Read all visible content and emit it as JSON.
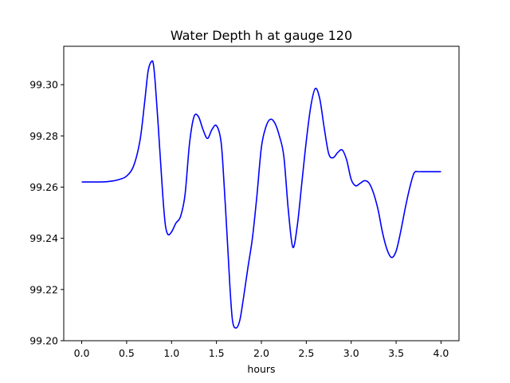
{
  "chart_data": {
    "type": "line",
    "title": "Water Depth h at gauge 120",
    "xlabel": "hours",
    "ylabel": "",
    "xlim": [
      -0.2,
      4.2
    ],
    "ylim": [
      99.2,
      99.315
    ],
    "xticks": [
      0.0,
      0.5,
      1.0,
      1.5,
      2.0,
      2.5,
      3.0,
      3.5,
      4.0
    ],
    "xtick_labels": [
      "0.0",
      "0.5",
      "1.0",
      "1.5",
      "2.0",
      "2.5",
      "3.0",
      "3.5",
      "4.0"
    ],
    "yticks": [
      99.2,
      99.22,
      99.24,
      99.26,
      99.28,
      99.3
    ],
    "ytick_labels": [
      "99.20",
      "99.22",
      "99.24",
      "99.26",
      "99.28",
      "99.30"
    ],
    "grid": false,
    "series": [
      {
        "color": "#0000ff",
        "x": [
          0.0,
          0.2,
          0.3,
          0.4,
          0.5,
          0.58,
          0.65,
          0.7,
          0.74,
          0.78,
          0.8,
          0.82,
          0.85,
          0.9,
          0.93,
          0.96,
          1.0,
          1.05,
          1.1,
          1.15,
          1.2,
          1.25,
          1.3,
          1.35,
          1.4,
          1.45,
          1.5,
          1.55,
          1.58,
          1.62,
          1.65,
          1.68,
          1.72,
          1.76,
          1.8,
          1.85,
          1.9,
          1.95,
          2.0,
          2.05,
          2.1,
          2.15,
          2.2,
          2.25,
          2.3,
          2.35,
          2.4,
          2.45,
          2.5,
          2.55,
          2.6,
          2.65,
          2.7,
          2.75,
          2.8,
          2.85,
          2.9,
          2.95,
          3.0,
          3.05,
          3.1,
          3.15,
          3.2,
          3.25,
          3.3,
          3.35,
          3.4,
          3.45,
          3.5,
          3.55,
          3.6,
          3.65,
          3.7,
          3.75,
          3.8,
          3.85,
          3.9,
          3.95,
          4.0
        ],
        "values": [
          99.262,
          99.262,
          99.2622,
          99.2628,
          99.2643,
          99.2685,
          99.2785,
          99.293,
          99.3055,
          99.3092,
          99.3075,
          99.3,
          99.285,
          99.258,
          99.2455,
          99.2415,
          99.2425,
          99.246,
          99.2485,
          99.257,
          99.277,
          99.2875,
          99.2875,
          99.2825,
          99.279,
          99.2825,
          99.284,
          99.278,
          99.264,
          99.24,
          99.221,
          99.2075,
          99.205,
          99.208,
          99.2165,
          99.2285,
          99.24,
          99.2565,
          99.2755,
          99.2835,
          99.2865,
          99.285,
          99.28,
          99.272,
          99.251,
          99.2365,
          99.245,
          99.2615,
          99.278,
          99.2915,
          99.2985,
          99.2945,
          99.283,
          99.273,
          99.2715,
          99.2735,
          99.2745,
          99.2705,
          99.263,
          99.2605,
          99.2615,
          99.2625,
          99.2615,
          99.2575,
          99.251,
          99.242,
          99.2355,
          99.2325,
          99.235,
          99.2425,
          99.2515,
          99.2595,
          99.2655,
          99.266,
          99.266,
          99.266,
          99.266,
          99.266,
          99.266
        ]
      }
    ]
  }
}
